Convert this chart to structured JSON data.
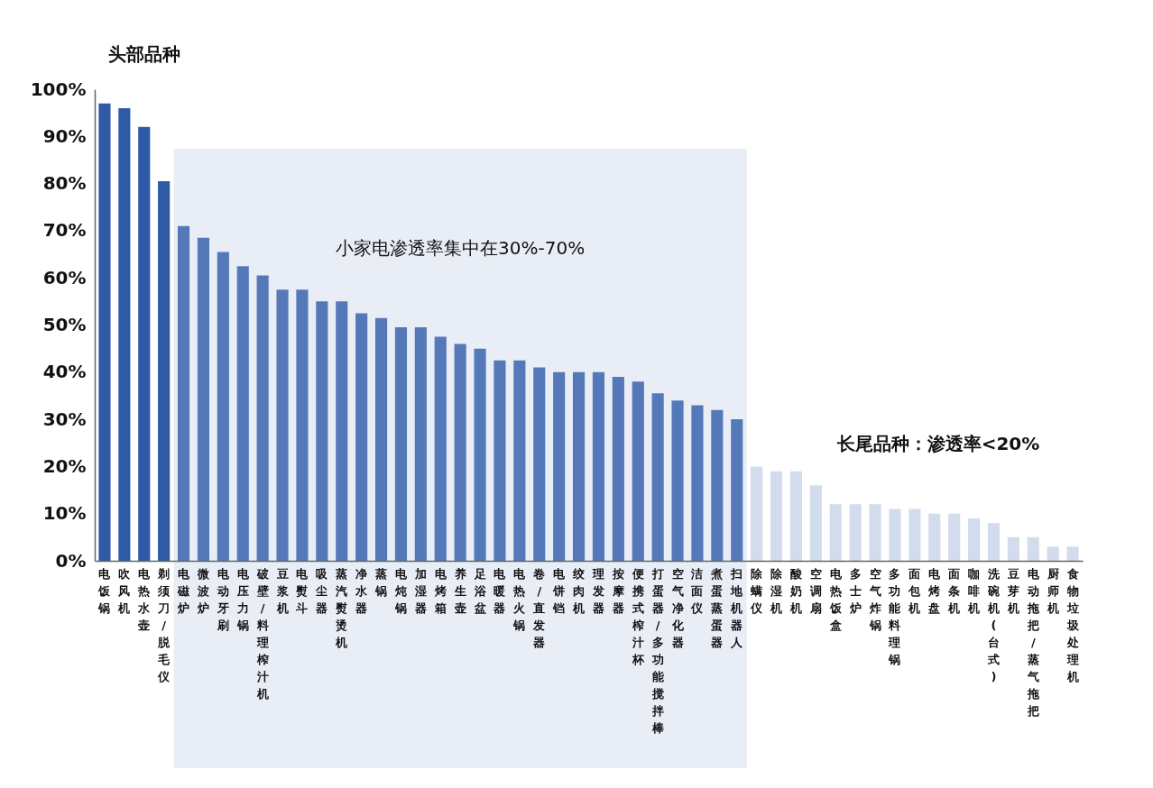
{
  "chart_data": {
    "type": "bar",
    "categories": [
      "电饭锅",
      "吹风机",
      "电热水壶",
      "剃须刀/脱毛仪",
      "电磁炉",
      "微波炉",
      "电动牙刷",
      "电压力锅",
      "破壁/料理榨汁机",
      "豆浆机",
      "电熨斗",
      "吸尘器",
      "蒸汽熨烫机",
      "净水器",
      "蒸锅",
      "电炖锅",
      "加湿器",
      "电烤箱",
      "养生壶",
      "足浴盆",
      "电暖器",
      "电热火锅",
      "卷/直发器",
      "电饼铛",
      "绞肉机",
      "理发器",
      "按摩器",
      "便携式榨汁杯",
      "打蛋器/多功能搅拌棒",
      "空气净化器",
      "洁面仪",
      "煮蛋蒸蛋器",
      "扫地机器人",
      "除螨仪",
      "除湿机",
      "酸奶机",
      "空调扇",
      "电热饭盒",
      "多士炉",
      "空气炸锅",
      "多功能料理锅",
      "面包机",
      "电烤盘",
      "面条机",
      "咖啡机",
      "洗碗机(台式)",
      "豆芽机",
      "电动拖把/蒸气拖把",
      "厨师机",
      "食物垃圾处理机"
    ],
    "values": [
      97,
      96,
      92,
      80.5,
      71,
      68.5,
      65.5,
      62.5,
      60.5,
      57.5,
      57.5,
      55,
      55,
      52.5,
      51.5,
      49.5,
      49.5,
      47.5,
      46,
      45,
      42.5,
      42.5,
      41,
      40,
      40,
      40,
      39,
      38,
      35.5,
      34,
      33,
      32,
      30,
      20,
      19,
      19,
      16,
      12,
      12,
      12,
      11,
      11,
      10,
      10,
      9,
      8,
      5,
      5,
      3,
      3
    ],
    "colors": [
      "#2e5aa8",
      "#2e5aa8",
      "#2e5aa8",
      "#2e5aa8",
      "#5478b8",
      "#5478b8",
      "#5478b8",
      "#5478b8",
      "#5478b8",
      "#5478b8",
      "#5478b8",
      "#5478b8",
      "#5478b8",
      "#5478b8",
      "#5478b8",
      "#5478b8",
      "#5478b8",
      "#5478b8",
      "#5478b8",
      "#5478b8",
      "#5478b8",
      "#5478b8",
      "#5478b8",
      "#5478b8",
      "#5478b8",
      "#5478b8",
      "#5478b8",
      "#5478b8",
      "#5478b8",
      "#5478b8",
      "#5478b8",
      "#5478b8",
      "#5478b8",
      "#d3dcec",
      "#d3dcec",
      "#d3dcec",
      "#d3dcec",
      "#d3dcec",
      "#d3dcec",
      "#d3dcec",
      "#d3dcec",
      "#d3dcec",
      "#d3dcec",
      "#d3dcec",
      "#d3dcec",
      "#d3dcec",
      "#d3dcec",
      "#d3dcec",
      "#d3dcec",
      "#d3dcec"
    ],
    "ylim": [
      0,
      100
    ],
    "yticks": [
      {
        "value": 0,
        "label": "0%"
      },
      {
        "value": 10,
        "label": "10%"
      },
      {
        "value": 20,
        "label": "20%"
      },
      {
        "value": 30,
        "label": "30%"
      },
      {
        "value": 40,
        "label": "40%"
      },
      {
        "value": 50,
        "label": "50%"
      },
      {
        "value": 60,
        "label": "60%"
      },
      {
        "value": 70,
        "label": "70%"
      },
      {
        "value": 80,
        "label": "80%"
      },
      {
        "value": 90,
        "label": "90%"
      },
      {
        "value": 100,
        "label": "100%"
      }
    ],
    "bands": [
      {
        "axis": "x",
        "from": "电磁炉",
        "to": "扫地机器人",
        "label": "小家电渗透率集中在30%-70%",
        "color": "#e8edf6"
      }
    ],
    "annotations": [
      "头部品种",
      "长尾品种：渗透率<20%"
    ],
    "grid": false
  }
}
